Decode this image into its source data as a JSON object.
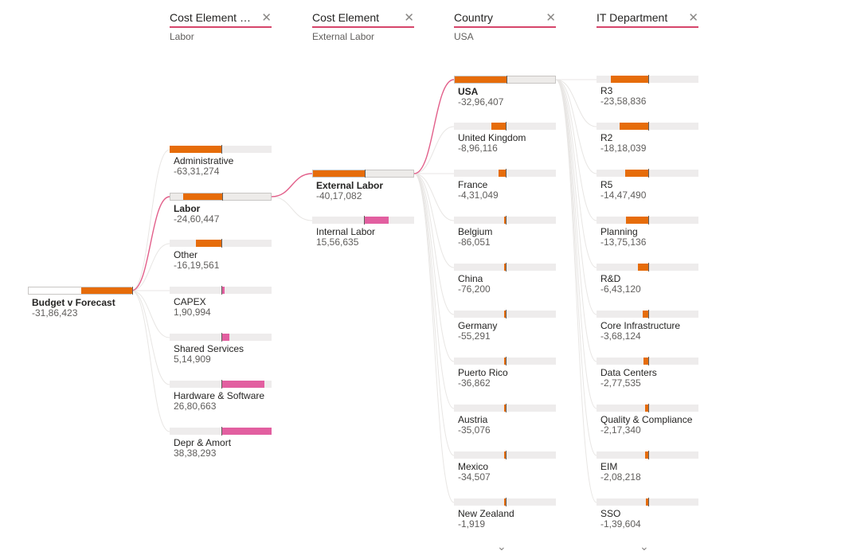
{
  "colors": {
    "negative": "#e66c0a",
    "positive": "#e25fa0",
    "link": "#e25f8a",
    "link_faint": "#e8e6e4"
  },
  "headers": [
    {
      "title": "Cost Element Gr...",
      "sub": "Labor"
    },
    {
      "title": "Cost Element",
      "sub": "External Labor"
    },
    {
      "title": "Country",
      "sub": "USA"
    },
    {
      "title": "IT Department",
      "sub": ""
    }
  ],
  "root": {
    "label": "Budget v Forecast",
    "value": "-31,86,423",
    "amount": -3186423
  },
  "levels": [
    {
      "name": "cost-element-group",
      "selected": 1,
      "nodes": [
        {
          "label": "Administrative",
          "value": "-63,31,274",
          "amount": -6331274
        },
        {
          "label": "Labor",
          "value": "-24,60,447",
          "amount": -2460447
        },
        {
          "label": "Other",
          "value": "-16,19,561",
          "amount": -1619561
        },
        {
          "label": "CAPEX",
          "value": "1,90,994",
          "amount": 190994
        },
        {
          "label": "Shared Services",
          "value": "5,14,909",
          "amount": 514909
        },
        {
          "label": "Hardware & Software",
          "value": "26,80,663",
          "amount": 2680663
        },
        {
          "label": "Depr & Amort",
          "value": "38,38,293",
          "amount": 3838293
        }
      ]
    },
    {
      "name": "cost-element",
      "selected": 0,
      "nodes": [
        {
          "label": "External Labor",
          "value": "-40,17,082",
          "amount": -4017082
        },
        {
          "label": "Internal Labor",
          "value": "15,56,635",
          "amount": 1556635
        }
      ]
    },
    {
      "name": "country",
      "selected": 0,
      "nodes": [
        {
          "label": "USA",
          "value": "-32,96,407",
          "amount": -3296407
        },
        {
          "label": "United Kingdom",
          "value": "-8,96,116",
          "amount": -896116
        },
        {
          "label": "France",
          "value": "-4,31,049",
          "amount": -431049
        },
        {
          "label": "Belgium",
          "value": "-86,051",
          "amount": -86051
        },
        {
          "label": "China",
          "value": "-76,200",
          "amount": -76200
        },
        {
          "label": "Germany",
          "value": "-55,291",
          "amount": -55291
        },
        {
          "label": "Puerto Rico",
          "value": "-36,862",
          "amount": -36862
        },
        {
          "label": "Austria",
          "value": "-35,076",
          "amount": -35076
        },
        {
          "label": "Mexico",
          "value": "-34,507",
          "amount": -34507
        },
        {
          "label": "New Zealand",
          "value": "-1,919",
          "amount": -1919
        }
      ]
    },
    {
      "name": "it-department",
      "selected": -1,
      "nodes": [
        {
          "label": "R3",
          "value": "-23,58,836",
          "amount": -2358836
        },
        {
          "label": "R2",
          "value": "-18,18,039",
          "amount": -1818039
        },
        {
          "label": "R5",
          "value": "-14,47,490",
          "amount": -1447490
        },
        {
          "label": "Planning",
          "value": "-13,75,136",
          "amount": -1375136
        },
        {
          "label": "R&D",
          "value": "-6,43,120",
          "amount": -643120
        },
        {
          "label": "Core Infrastructure",
          "value": "-3,68,124",
          "amount": -368124
        },
        {
          "label": "Data Centers",
          "value": "-2,77,535",
          "amount": -277535
        },
        {
          "label": "Quality & Compliance",
          "value": "-2,17,340",
          "amount": -217340
        },
        {
          "label": "EIM",
          "value": "-2,08,218",
          "amount": -208218
        },
        {
          "label": "SSO",
          "value": "-1,39,604",
          "amount": -139604
        }
      ]
    }
  ],
  "more_icon": "chevron-down-icon"
}
